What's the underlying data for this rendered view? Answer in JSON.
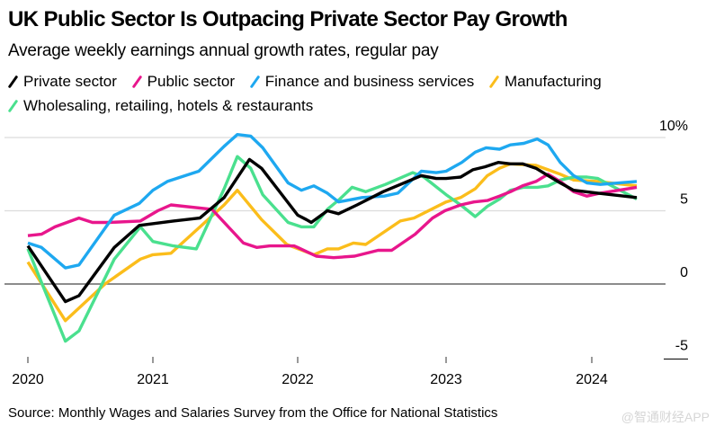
{
  "header": {
    "title": "UK Public Sector Is Outpacing Private Sector Pay Growth",
    "subtitle": "Average weekly earnings annual growth rates, regular pay"
  },
  "footer": {
    "source": "Source: Monthly Wages and Salaries Survey from the Office for National Statistics",
    "watermark": "@智通财经APP"
  },
  "chart_data": {
    "type": "line",
    "title": "UK Public Sector Is Outpacing Private Sector Pay Growth",
    "subtitle": "Average weekly earnings annual growth rates, regular pay",
    "xlabel": "",
    "ylabel": "",
    "x_unit": "months since Jan 2020",
    "xlim": [
      0,
      52
    ],
    "ylim": [
      -5,
      10
    ],
    "y_ticks": [
      {
        "value": 10,
        "label": "10%"
      },
      {
        "value": 5,
        "label": "5"
      },
      {
        "value": 0,
        "label": "0"
      },
      {
        "value": -5,
        "label": "-5"
      }
    ],
    "x_ticks": [
      {
        "value": 0,
        "label": "2020"
      },
      {
        "value": 12,
        "label": "2021"
      },
      {
        "value": 24,
        "label": "2022"
      },
      {
        "value": 36,
        "label": "2023"
      },
      {
        "value": 48,
        "label": "2024"
      }
    ],
    "grid": true,
    "legend_position": "top-left",
    "series": [
      {
        "name": "Private sector",
        "color": "#000000",
        "points": [
          [
            0,
            2.6
          ],
          [
            3.6,
            -1.2
          ],
          [
            4.9,
            -0.8
          ],
          [
            8.3,
            2.5
          ],
          [
            10.7,
            4.0
          ],
          [
            13.7,
            4.3
          ],
          [
            15.9,
            4.5
          ],
          [
            17.9,
            5.9
          ],
          [
            20.0,
            8.5
          ],
          [
            21.0,
            7.9
          ],
          [
            24.0,
            4.7
          ],
          [
            24.7,
            4.4
          ],
          [
            25.1,
            4.2
          ],
          [
            26.4,
            5.0
          ],
          [
            27.3,
            4.8
          ],
          [
            28.8,
            5.4
          ],
          [
            30.9,
            6.3
          ],
          [
            34.0,
            7.4
          ],
          [
            35.2,
            7.2
          ],
          [
            36.0,
            7.2
          ],
          [
            37.2,
            7.3
          ],
          [
            38.2,
            7.8
          ],
          [
            39.2,
            8.0
          ],
          [
            40.3,
            8.3
          ],
          [
            41.3,
            8.2
          ],
          [
            42.3,
            8.2
          ],
          [
            43.4,
            7.9
          ],
          [
            44.4,
            7.4
          ],
          [
            45.4,
            6.9
          ],
          [
            46.5,
            6.4
          ],
          [
            48.5,
            6.2
          ],
          [
            51.7,
            5.9
          ]
        ]
      },
      {
        "name": "Public sector",
        "color": "#e8168c",
        "points": [
          [
            0,
            3.3
          ],
          [
            1.3,
            3.4
          ],
          [
            2.6,
            3.9
          ],
          [
            4.9,
            4.5
          ],
          [
            6.2,
            4.2
          ],
          [
            7.8,
            4.2
          ],
          [
            10.8,
            4.3
          ],
          [
            12.4,
            5.0
          ],
          [
            13.5,
            5.4
          ],
          [
            16.9,
            5.1
          ],
          [
            19.5,
            2.8
          ],
          [
            20.6,
            2.5
          ],
          [
            21.7,
            2.6
          ],
          [
            23.7,
            2.6
          ],
          [
            24.0,
            2.5
          ],
          [
            25.5,
            1.9
          ],
          [
            26.9,
            1.8
          ],
          [
            28.6,
            1.9
          ],
          [
            30.5,
            2.3
          ],
          [
            31.6,
            2.3
          ],
          [
            33.5,
            3.4
          ],
          [
            34.9,
            4.5
          ],
          [
            35.9,
            5.0
          ],
          [
            37.2,
            5.4
          ],
          [
            38.3,
            5.6
          ],
          [
            39.4,
            5.7
          ],
          [
            40.4,
            6.0
          ],
          [
            41.3,
            6.3
          ],
          [
            42.3,
            6.7
          ],
          [
            43.4,
            7.0
          ],
          [
            44.4,
            7.5
          ],
          [
            45.4,
            7.0
          ],
          [
            46.5,
            6.3
          ],
          [
            47.6,
            6.0
          ],
          [
            48.7,
            6.2
          ],
          [
            51.7,
            6.6
          ]
        ]
      },
      {
        "name": "Finance and business services",
        "color": "#1ea8f0",
        "points": [
          [
            0,
            2.8
          ],
          [
            1.3,
            2.5
          ],
          [
            3.6,
            1.1
          ],
          [
            4.9,
            1.3
          ],
          [
            8.3,
            4.7
          ],
          [
            10.7,
            5.5
          ],
          [
            12.0,
            6.4
          ],
          [
            13.2,
            7.0
          ],
          [
            15.8,
            7.7
          ],
          [
            17.9,
            9.4
          ],
          [
            19.0,
            10.2
          ],
          [
            20.1,
            10.1
          ],
          [
            21.1,
            9.3
          ],
          [
            23.2,
            6.9
          ],
          [
            24.3,
            6.4
          ],
          [
            25.3,
            6.7
          ],
          [
            26.4,
            6.2
          ],
          [
            27.3,
            5.6
          ],
          [
            29.2,
            5.9
          ],
          [
            31.0,
            6.0
          ],
          [
            32.1,
            6.2
          ],
          [
            34.0,
            7.7
          ],
          [
            35.2,
            7.6
          ],
          [
            36.0,
            7.7
          ],
          [
            37.3,
            8.3
          ],
          [
            38.4,
            9.0
          ],
          [
            39.3,
            9.3
          ],
          [
            40.4,
            9.2
          ],
          [
            41.3,
            9.5
          ],
          [
            42.4,
            9.6
          ],
          [
            43.5,
            9.9
          ],
          [
            44.4,
            9.5
          ],
          [
            45.4,
            8.3
          ],
          [
            46.5,
            7.4
          ],
          [
            47.6,
            6.9
          ],
          [
            48.7,
            6.8
          ],
          [
            51.7,
            7.0
          ]
        ]
      },
      {
        "name": "Manufacturing",
        "color": "#fbbd1b",
        "points": [
          [
            0,
            1.5
          ],
          [
            3.6,
            -2.5
          ],
          [
            7.4,
            0.0
          ],
          [
            10.8,
            1.7
          ],
          [
            12.0,
            2.0
          ],
          [
            13.5,
            2.1
          ],
          [
            17.9,
            5.4
          ],
          [
            19.0,
            6.4
          ],
          [
            21.0,
            4.4
          ],
          [
            23.1,
            2.7
          ],
          [
            25.3,
            2.0
          ],
          [
            26.4,
            2.4
          ],
          [
            27.3,
            2.4
          ],
          [
            28.5,
            2.8
          ],
          [
            29.5,
            2.7
          ],
          [
            32.3,
            4.3
          ],
          [
            33.4,
            4.5
          ],
          [
            36.0,
            5.6
          ],
          [
            37.2,
            5.9
          ],
          [
            38.4,
            6.5
          ],
          [
            39.4,
            7.4
          ],
          [
            40.4,
            7.9
          ],
          [
            41.3,
            8.2
          ],
          [
            43.4,
            8.1
          ],
          [
            44.4,
            7.8
          ],
          [
            45.4,
            7.5
          ],
          [
            46.5,
            7.1
          ],
          [
            48.5,
            7.0
          ],
          [
            51.7,
            6.7
          ]
        ]
      },
      {
        "name": "Wholesaling, retailing, hotels & restaurants",
        "color": "#4ae08e",
        "points": [
          [
            0,
            2.4
          ],
          [
            3.6,
            -3.9
          ],
          [
            4.9,
            -3.2
          ],
          [
            8.3,
            1.7
          ],
          [
            10.8,
            3.9
          ],
          [
            12.0,
            2.9
          ],
          [
            13.7,
            2.6
          ],
          [
            15.6,
            2.4
          ],
          [
            17.9,
            6.5
          ],
          [
            19.0,
            8.7
          ],
          [
            20.1,
            7.9
          ],
          [
            21.1,
            6.1
          ],
          [
            23.2,
            4.2
          ],
          [
            24.3,
            3.9
          ],
          [
            25.3,
            3.9
          ],
          [
            26.4,
            5.1
          ],
          [
            27.4,
            5.8
          ],
          [
            28.4,
            6.6
          ],
          [
            29.5,
            6.3
          ],
          [
            31.1,
            6.8
          ],
          [
            33.3,
            7.6
          ],
          [
            34.2,
            7.3
          ],
          [
            36.0,
            6.1
          ],
          [
            37.2,
            5.4
          ],
          [
            38.4,
            4.6
          ],
          [
            39.4,
            5.3
          ],
          [
            40.4,
            5.8
          ],
          [
            41.3,
            6.4
          ],
          [
            42.4,
            6.6
          ],
          [
            43.5,
            6.6
          ],
          [
            44.4,
            6.7
          ],
          [
            45.4,
            7.1
          ],
          [
            46.5,
            7.3
          ],
          [
            47.6,
            7.3
          ],
          [
            48.5,
            7.2
          ],
          [
            51.7,
            5.8
          ]
        ]
      }
    ]
  }
}
